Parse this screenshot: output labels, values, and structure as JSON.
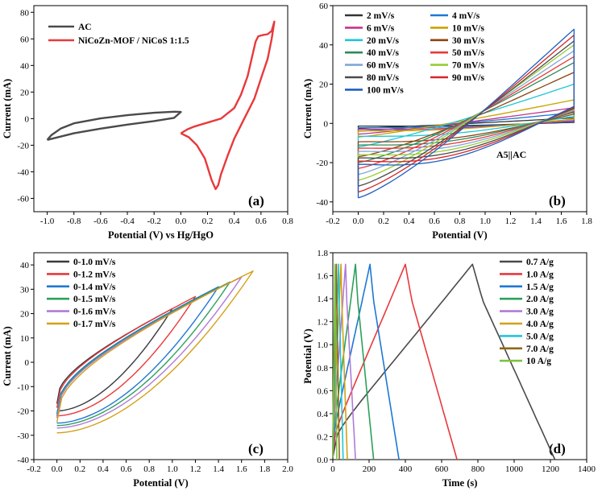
{
  "chart_data": [
    {
      "type": "line",
      "panel_label": "(a)",
      "xlabel": "Potential (V) vs Hg/HgO",
      "ylabel": "Current (mA)",
      "xlim": [
        -1.1,
        0.8
      ],
      "ylim": [
        -70,
        85
      ],
      "xticks": [
        "-1.0",
        "-0.8",
        "-0.6",
        "-0.4",
        "-0.2",
        "0.0",
        "0.2",
        "0.4",
        "0.6",
        "0.8"
      ],
      "yticks": [
        "-60",
        "-40",
        "-20",
        "0",
        "20",
        "40",
        "60",
        "80"
      ],
      "legend_position": "top-left",
      "series": [
        {
          "name": "AC",
          "color": "#4a4a4a",
          "points": [
            [
              -1.0,
              -16
            ],
            [
              -0.9,
              -13.5
            ],
            [
              -0.8,
              -11
            ],
            [
              -0.6,
              -7.5
            ],
            [
              -0.4,
              -4.5
            ],
            [
              -0.2,
              -1.8
            ],
            [
              -0.05,
              0.6
            ],
            [
              0.0,
              5
            ],
            [
              -0.05,
              5.2
            ],
            [
              -0.2,
              4.4
            ],
            [
              -0.4,
              2.6
            ],
            [
              -0.6,
              0.2
            ],
            [
              -0.8,
              -3.5
            ],
            [
              -0.9,
              -7.5
            ],
            [
              -0.97,
              -12.5
            ],
            [
              -1.0,
              -16
            ]
          ]
        },
        {
          "name": "NiCoZn-MOF / NiCoS 1:1.5",
          "color": "#e8393b",
          "points": [
            [
              0.0,
              -11
            ],
            [
              0.05,
              -8
            ],
            [
              0.1,
              -6
            ],
            [
              0.2,
              -3
            ],
            [
              0.3,
              0
            ],
            [
              0.4,
              8
            ],
            [
              0.45,
              18
            ],
            [
              0.5,
              32
            ],
            [
              0.53,
              45
            ],
            [
              0.56,
              58
            ],
            [
              0.58,
              62
            ],
            [
              0.62,
              63
            ],
            [
              0.65,
              63.5
            ],
            [
              0.68,
              66
            ],
            [
              0.7,
              73
            ],
            [
              0.68,
              60
            ],
            [
              0.65,
              45
            ],
            [
              0.6,
              30
            ],
            [
              0.55,
              15
            ],
            [
              0.5,
              5
            ],
            [
              0.45,
              -5
            ],
            [
              0.4,
              -15
            ],
            [
              0.35,
              -28
            ],
            [
              0.3,
              -42
            ],
            [
              0.28,
              -50
            ],
            [
              0.26,
              -53
            ],
            [
              0.23,
              -46
            ],
            [
              0.18,
              -30
            ],
            [
              0.12,
              -20
            ],
            [
              0.06,
              -14
            ],
            [
              0.0,
              -11
            ]
          ]
        }
      ]
    },
    {
      "type": "line",
      "panel_label": "(b)",
      "annotation": "A5||AC",
      "xlabel": "Potential (V)",
      "ylabel": "Current (mA)",
      "xlim": [
        -0.2,
        1.8
      ],
      "ylim": [
        -45,
        60
      ],
      "xticks": [
        "-0.2",
        "0.0",
        "0.2",
        "0.4",
        "0.6",
        "0.8",
        "1.0",
        "1.2",
        "1.4",
        "1.6",
        "1.8"
      ],
      "yticks": [
        "-40",
        "-20",
        "0",
        "20",
        "40",
        "60"
      ],
      "legend_position": "top-left",
      "series": [
        {
          "name": "2 mV/s",
          "color": "#333333",
          "a": 2.8,
          "b": -2.5
        },
        {
          "name": "4 mV/s",
          "color": "#1f77d4",
          "a": 5.5,
          "b": -4.0
        },
        {
          "name": "6 mV/s",
          "color": "#c2358a",
          "a": 8.0,
          "b": -5.5
        },
        {
          "name": "10 mV/s",
          "color": "#c9a400",
          "a": 12.0,
          "b": -7.0
        },
        {
          "name": "20 mV/s",
          "color": "#1fc6d6",
          "a": 20.0,
          "b": -12.0
        },
        {
          "name": "30 mV/s",
          "color": "#8b4513",
          "a": 26.0,
          "b": -17.0
        },
        {
          "name": "40 mV/s",
          "color": "#2e8b57",
          "a": 31.0,
          "b": -20.0
        },
        {
          "name": "50 mV/s",
          "color": "#e8393b",
          "a": 34.0,
          "b": -23.0
        },
        {
          "name": "60 mV/s",
          "color": "#7fa8d6",
          "a": 37.0,
          "b": -26.0
        },
        {
          "name": "70 mV/s",
          "color": "#9acd32",
          "a": 40.0,
          "b": -29.0
        },
        {
          "name": "80 mV/s",
          "color": "#4b4b4b",
          "a": 42.0,
          "b": -32.0
        },
        {
          "name": "90 mV/s",
          "color": "#d62728",
          "a": 45.0,
          "b": -35.0
        },
        {
          "name": "100 mV/s",
          "color": "#1f5fbf",
          "a": 48.0,
          "b": -38.0
        }
      ]
    },
    {
      "type": "line",
      "panel_label": "(c)",
      "xlabel": "Potential (V)",
      "ylabel": "Current (mA)",
      "xlim": [
        -0.2,
        2.0
      ],
      "ylim": [
        -40,
        45
      ],
      "xticks": [
        "-0.2",
        "0.0",
        "0.2",
        "0.4",
        "0.6",
        "0.8",
        "1.0",
        "1.2",
        "1.4",
        "1.6",
        "1.8",
        "2.0"
      ],
      "yticks": [
        "-40",
        "-30",
        "-20",
        "-10",
        "0",
        "10",
        "20",
        "30",
        "40"
      ],
      "legend_position": "top-left",
      "series": [
        {
          "name": "0-1.0 mV/s",
          "color": "#3a3a3a",
          "vmax": 1.0,
          "imax": 22,
          "imin": -20
        },
        {
          "name": "0-1.2 mV/s",
          "color": "#e8393b",
          "vmax": 1.2,
          "imax": 27,
          "imin": -22
        },
        {
          "name": "0-1.4 mV/s",
          "color": "#1f77d4",
          "vmax": 1.4,
          "imax": 31,
          "imin": -25
        },
        {
          "name": "0-1.5 mV/s",
          "color": "#2ca05a",
          "vmax": 1.5,
          "imax": 33,
          "imin": -26
        },
        {
          "name": "0-1.6 mV/s",
          "color": "#b07bd6",
          "vmax": 1.6,
          "imax": 35,
          "imin": -27
        },
        {
          "name": "0-1.7 mV/s",
          "color": "#d4a017",
          "vmax": 1.7,
          "imax": 37.5,
          "imin": -29
        }
      ]
    },
    {
      "type": "line",
      "panel_label": "(d)",
      "xlabel": "Time (s)",
      "ylabel": "Potential (V)",
      "xlim": [
        0,
        1400
      ],
      "ylim": [
        0.0,
        1.8
      ],
      "xticks": [
        "0",
        "200",
        "400",
        "600",
        "800",
        "1000",
        "1200",
        "1400"
      ],
      "yticks": [
        "0.0",
        "0.2",
        "0.4",
        "0.6",
        "0.8",
        "1.0",
        "1.2",
        "1.4",
        "1.6",
        "1.8"
      ],
      "legend_position": "top-right",
      "series": [
        {
          "name": "0.7 A/g",
          "color": "#4a4a4a",
          "tc": 770,
          "td": 1225
        },
        {
          "name": "1.0 A/g",
          "color": "#e8393b",
          "tc": 400,
          "td": 685
        },
        {
          "name": "1.5 A/g",
          "color": "#1f77d4",
          "tc": 205,
          "td": 365
        },
        {
          "name": "2.0 A/g",
          "color": "#2ca05a",
          "tc": 125,
          "td": 225
        },
        {
          "name": "3.0 A/g",
          "color": "#b07bd6",
          "tc": 70,
          "td": 125
        },
        {
          "name": "4.0 A/g",
          "color": "#d4a017",
          "tc": 45,
          "td": 80
        },
        {
          "name": "5.0 A/g",
          "color": "#1fc6d6",
          "tc": 32,
          "td": 57
        },
        {
          "name": "7.0 A/g",
          "color": "#8b6914",
          "tc": 20,
          "td": 36
        },
        {
          "name": "10 A/g",
          "color": "#7dc242",
          "tc": 12,
          "td": 22
        }
      ]
    }
  ]
}
